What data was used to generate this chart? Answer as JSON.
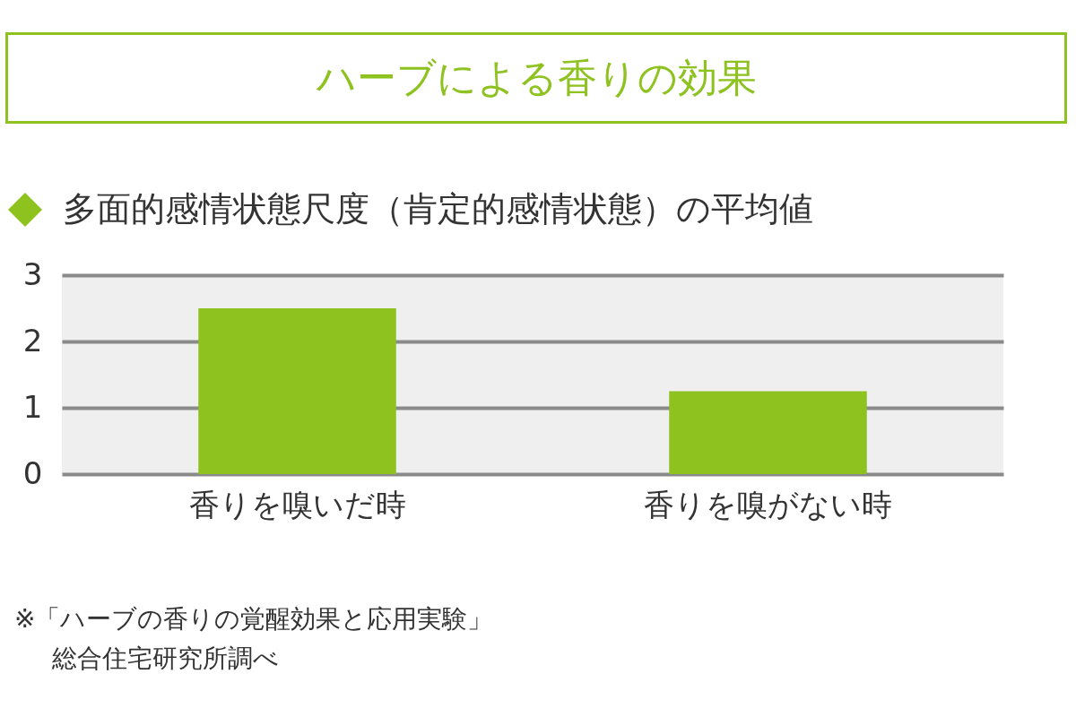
{
  "chart_data": {
    "type": "bar",
    "title": "ハーブによる香りの効果",
    "subtitle": "多面的感情状態尺度（肯定的感情状態）の平均値",
    "categories": [
      "香りを嗅いだ時",
      "香りを嗅がない時"
    ],
    "values": [
      2.5,
      1.25
    ],
    "color": "#8dc21f",
    "ylim": [
      0,
      3
    ],
    "yticks": [
      0,
      1,
      2,
      3
    ],
    "grid": "y",
    "annotations": [
      "※「ハーブの香りの覚醒効果と応用実験」",
      "総合住宅研究所調べ"
    ]
  }
}
